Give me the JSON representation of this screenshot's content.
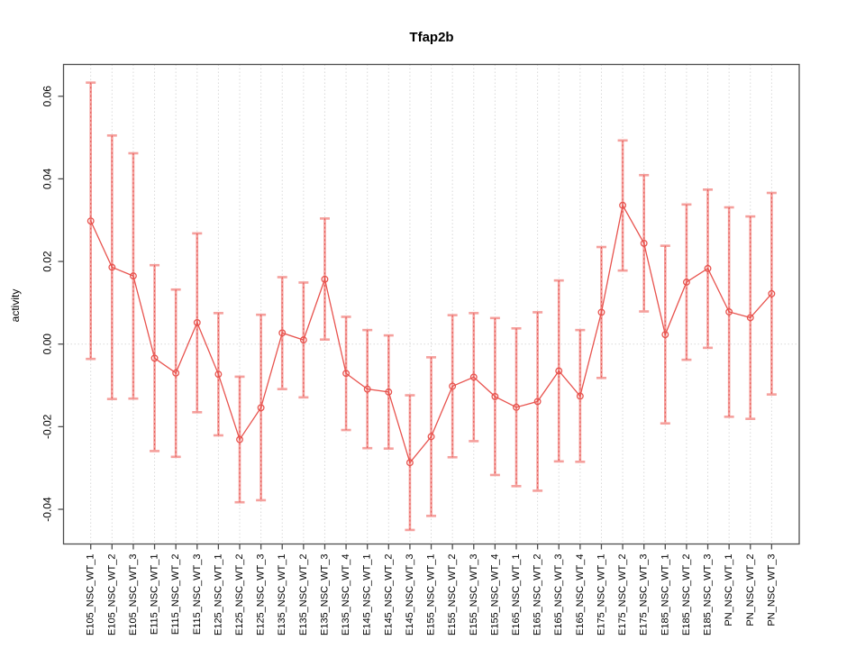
{
  "figure": {
    "title": "Tfap2b",
    "ylabel": "activity"
  },
  "chart_data": {
    "type": "line",
    "subtype": "points-with-error-bars",
    "title": "Tfap2b",
    "xlabel": "",
    "ylabel": "activity",
    "legend": "none",
    "grid": "vertical dotted line at every category; horizontal dotted line at y=0",
    "marker": "open-circle",
    "point_color": "#e8534e",
    "error_bar_color": "#f5a09d",
    "grid_color": "#d9d9d9",
    "axis_color": "#4d4d4d",
    "ylim": [
      -0.0484,
      0.0677
    ],
    "yticks": [
      {
        "label": "0.06",
        "value": 0.06
      },
      {
        "label": "0.04",
        "value": 0.04
      },
      {
        "label": "0.02",
        "value": 0.02
      },
      {
        "label": "0.00",
        "value": 0.0
      },
      {
        "label": "-0.02",
        "value": -0.02
      },
      {
        "label": "-0.04",
        "value": -0.04
      }
    ],
    "zero_line": 0,
    "categories": [
      "E105_NSC_WT_1",
      "E105_NSC_WT_2",
      "E105_NSC_WT_3",
      "E115_NSC_WT_1",
      "E115_NSC_WT_2",
      "E115_NSC_WT_3",
      "E125_NSC_WT_1",
      "E125_NSC_WT_2",
      "E125_NSC_WT_3",
      "E135_NSC_WT_1",
      "E135_NSC_WT_2",
      "E135_NSC_WT_3",
      "E135_NSC_WT_4",
      "E145_NSC_WT_1",
      "E145_NSC_WT_2",
      "E145_NSC_WT_3",
      "E155_NSC_WT_1",
      "E155_NSC_WT_2",
      "E155_NSC_WT_3",
      "E155_NSC_WT_4",
      "E165_NSC_WT_1",
      "E165_NSC_WT_2",
      "E165_NSC_WT_3",
      "E165_NSC_WT_4",
      "E175_NSC_WT_1",
      "E175_NSC_WT_2",
      "E175_NSC_WT_3",
      "E185_NSC_WT_1",
      "E185_NSC_WT_2",
      "E185_NSC_WT_3",
      "PN_NSC_WT_1",
      "PN_NSC_WT_2",
      "PN_NSC_WT_3"
    ],
    "series": [
      {
        "name": "activity",
        "values": [
          0.0298,
          0.0186,
          0.0165,
          -0.0034,
          -0.007,
          0.0052,
          -0.0073,
          -0.0231,
          -0.0154,
          0.0027,
          0.001,
          0.0157,
          -0.0071,
          -0.0109,
          -0.0116,
          -0.0287,
          -0.0224,
          -0.0102,
          -0.008,
          -0.0127,
          -0.0153,
          -0.0139,
          -0.0065,
          -0.0126,
          0.0077,
          0.0336,
          0.0244,
          0.0023,
          0.015,
          0.0183,
          0.0078,
          0.0064,
          0.0122
        ],
        "error_high": [
          0.0633,
          0.0505,
          0.0462,
          0.0191,
          0.0132,
          0.0268,
          0.0075,
          -0.0079,
          0.0071,
          0.0162,
          0.0149,
          0.0304,
          0.0066,
          0.0034,
          0.0021,
          -0.0124,
          -0.0032,
          0.007,
          0.0075,
          0.0063,
          0.0038,
          0.0077,
          0.0154,
          0.0034,
          0.0235,
          0.0493,
          0.0409,
          0.0238,
          0.0338,
          0.0374,
          0.0331,
          0.0309,
          0.0366
        ],
        "error_low": [
          -0.0036,
          -0.0133,
          -0.0132,
          -0.0259,
          -0.0273,
          -0.0165,
          -0.0221,
          -0.0383,
          -0.0378,
          -0.0109,
          -0.0129,
          0.0011,
          -0.0208,
          -0.0252,
          -0.0253,
          -0.045,
          -0.0416,
          -0.0274,
          -0.0235,
          -0.0317,
          -0.0344,
          -0.0355,
          -0.0284,
          -0.0285,
          -0.0082,
          0.0178,
          0.0079,
          -0.0192,
          -0.0038,
          -0.0009,
          -0.0176,
          -0.0181,
          -0.0122
        ]
      }
    ]
  }
}
